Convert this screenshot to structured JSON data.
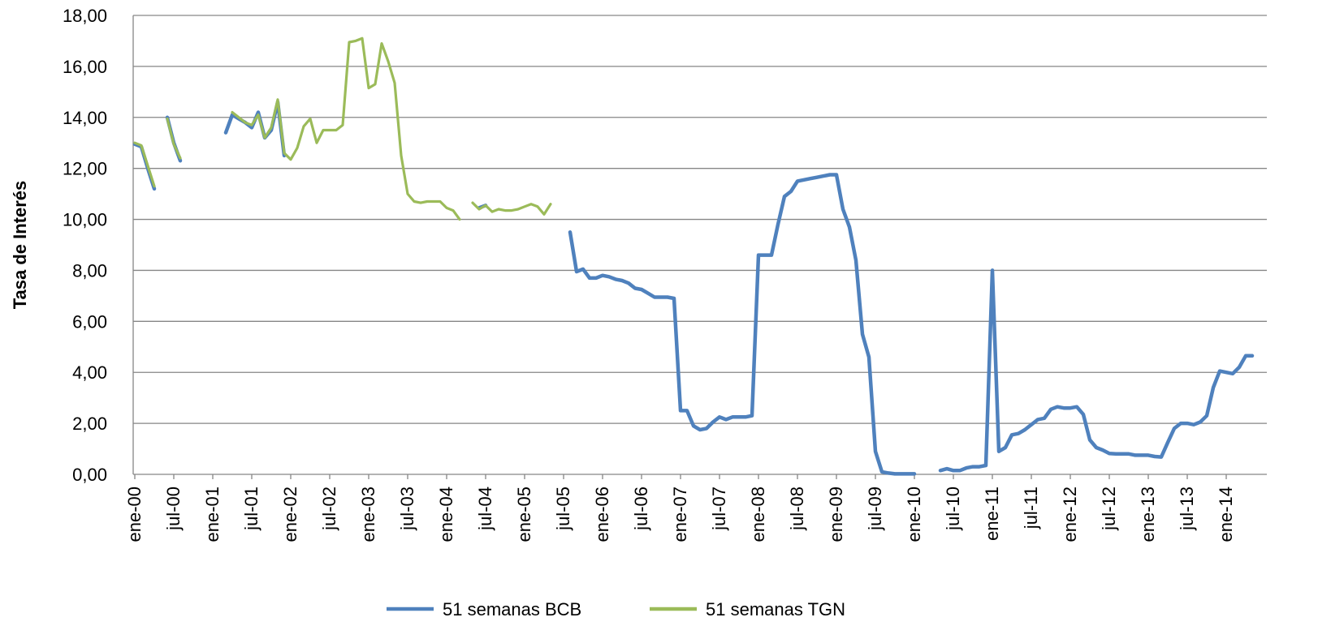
{
  "chart_data": {
    "type": "line",
    "ylabel": "Tasa de Interés",
    "ylim": [
      0,
      18
    ],
    "yticks": [
      "0,00",
      "2,00",
      "4,00",
      "6,00",
      "8,00",
      "10,00",
      "12,00",
      "14,00",
      "16,00",
      "18,00"
    ],
    "xticks": [
      "ene-00",
      "jul-00",
      "ene-01",
      "jul-01",
      "ene-02",
      "jul-02",
      "ene-03",
      "jul-03",
      "ene-04",
      "jul-04",
      "ene-05",
      "jul-05",
      "ene-06",
      "jul-06",
      "ene-07",
      "jul-07",
      "ene-08",
      "jul-08",
      "ene-09",
      "jul-09",
      "ene-10",
      "jul-10",
      "ene-11",
      "jul-11",
      "ene-12",
      "jul-12",
      "ene-13",
      "jul-13",
      "ene-14"
    ],
    "x_unit": "months since ene-00",
    "grid": true,
    "legend_position": "bottom",
    "series": [
      {
        "name": "51 semanas BCB",
        "color": "#4F81BD",
        "segments": [
          [
            [
              0,
              12.95
            ],
            [
              1,
              12.85
            ],
            [
              2,
              12.0
            ],
            [
              3,
              11.2
            ]
          ],
          [
            [
              5,
              14.0
            ],
            [
              6,
              13.0
            ],
            [
              7,
              12.3
            ]
          ],
          [
            [
              14,
              13.4
            ],
            [
              15,
              14.1
            ],
            [
              16,
              13.95
            ],
            [
              17,
              13.8
            ],
            [
              18,
              13.6
            ],
            [
              19,
              14.2
            ],
            [
              20,
              13.2
            ],
            [
              21,
              13.5
            ],
            [
              22,
              14.6
            ],
            [
              23,
              12.5
            ]
          ],
          [
            [
              53,
              10.45
            ],
            [
              54,
              10.55
            ]
          ],
          [
            [
              67,
              9.5
            ],
            [
              68,
              7.95
            ],
            [
              69,
              8.05
            ],
            [
              70,
              7.7
            ],
            [
              71,
              7.7
            ],
            [
              72,
              7.8
            ],
            [
              73,
              7.75
            ],
            [
              74,
              7.65
            ],
            [
              75,
              7.6
            ],
            [
              76,
              7.5
            ],
            [
              77,
              7.3
            ],
            [
              78,
              7.25
            ],
            [
              79,
              7.1
            ],
            [
              80,
              6.95
            ],
            [
              81,
              6.95
            ],
            [
              82,
              6.95
            ],
            [
              83,
              6.9
            ],
            [
              84,
              2.5
            ],
            [
              85,
              2.5
            ],
            [
              86,
              1.9
            ],
            [
              87,
              1.75
            ],
            [
              88,
              1.8
            ],
            [
              89,
              2.05
            ],
            [
              90,
              2.25
            ],
            [
              91,
              2.15
            ],
            [
              92,
              2.25
            ],
            [
              93,
              2.25
            ],
            [
              94,
              2.25
            ],
            [
              95,
              2.3
            ],
            [
              96,
              8.6
            ],
            [
              97,
              8.6
            ],
            [
              98,
              8.6
            ],
            [
              99,
              9.8
            ],
            [
              100,
              10.9
            ],
            [
              101,
              11.1
            ],
            [
              102,
              11.5
            ],
            [
              103,
              11.55
            ],
            [
              104,
              11.6
            ],
            [
              105,
              11.65
            ],
            [
              106,
              11.7
            ],
            [
              107,
              11.75
            ],
            [
              108,
              11.75
            ],
            [
              109,
              10.4
            ],
            [
              110,
              9.7
            ],
            [
              111,
              8.4
            ],
            [
              112,
              5.5
            ],
            [
              113,
              4.6
            ],
            [
              114,
              0.9
            ],
            [
              115,
              0.1
            ],
            [
              116,
              0.05
            ],
            [
              117,
              0.02
            ],
            [
              118,
              0.02
            ],
            [
              119,
              0.02
            ],
            [
              120,
              0.02
            ]
          ],
          [
            [
              124,
              0.15
            ],
            [
              125,
              0.22
            ],
            [
              126,
              0.15
            ],
            [
              127,
              0.15
            ],
            [
              128,
              0.25
            ],
            [
              129,
              0.3
            ],
            [
              130,
              0.3
            ],
            [
              131,
              0.35
            ],
            [
              132,
              8.0
            ],
            [
              133,
              0.9
            ],
            [
              134,
              1.05
            ],
            [
              135,
              1.55
            ],
            [
              136,
              1.6
            ],
            [
              137,
              1.75
            ],
            [
              138,
              1.95
            ],
            [
              139,
              2.15
            ],
            [
              140,
              2.2
            ],
            [
              141,
              2.55
            ],
            [
              142,
              2.65
            ],
            [
              143,
              2.6
            ],
            [
              144,
              2.6
            ],
            [
              145,
              2.65
            ],
            [
              146,
              2.35
            ],
            [
              147,
              1.35
            ],
            [
              148,
              1.05
            ],
            [
              149,
              0.95
            ],
            [
              150,
              0.82
            ],
            [
              151,
              0.8
            ],
            [
              152,
              0.8
            ],
            [
              153,
              0.8
            ],
            [
              154,
              0.75
            ],
            [
              155,
              0.75
            ],
            [
              156,
              0.75
            ],
            [
              157,
              0.7
            ],
            [
              158,
              0.68
            ],
            [
              159,
              1.25
            ],
            [
              160,
              1.8
            ],
            [
              161,
              2.0
            ],
            [
              162,
              2.0
            ],
            [
              163,
              1.95
            ],
            [
              164,
              2.05
            ],
            [
              165,
              2.3
            ],
            [
              166,
              3.4
            ],
            [
              167,
              4.05
            ],
            [
              168,
              4.0
            ],
            [
              169,
              3.95
            ],
            [
              170,
              4.2
            ],
            [
              171,
              4.65
            ],
            [
              172,
              4.65
            ]
          ]
        ]
      },
      {
        "name": "51 semanas TGN",
        "color": "#9BBB59",
        "segments": [
          [
            [
              0,
              13.0
            ],
            [
              1,
              12.9
            ],
            [
              2,
              12.1
            ],
            [
              3,
              11.3
            ]
          ],
          [
            [
              5,
              13.95
            ],
            [
              6,
              12.95
            ],
            [
              7,
              12.4
            ]
          ],
          [
            [
              15,
              14.2
            ],
            [
              16,
              14.0
            ],
            [
              17,
              13.8
            ],
            [
              18,
              13.7
            ],
            [
              19,
              14.1
            ],
            [
              20,
              13.2
            ],
            [
              21,
              13.6
            ],
            [
              22,
              14.7
            ],
            [
              23,
              12.6
            ],
            [
              24,
              12.35
            ],
            [
              25,
              12.8
            ],
            [
              26,
              13.65
            ],
            [
              27,
              13.95
            ],
            [
              28,
              13.0
            ],
            [
              29,
              13.5
            ],
            [
              30,
              13.5
            ],
            [
              31,
              13.5
            ],
            [
              32,
              13.7
            ],
            [
              33,
              16.95
            ],
            [
              34,
              17.0
            ],
            [
              35,
              17.1
            ],
            [
              36,
              15.15
            ],
            [
              37,
              15.3
            ],
            [
              38,
              16.9
            ],
            [
              39,
              16.2
            ],
            [
              40,
              15.35
            ],
            [
              41,
              12.5
            ],
            [
              42,
              11.0
            ],
            [
              43,
              10.7
            ],
            [
              44,
              10.65
            ],
            [
              45,
              10.7
            ],
            [
              46,
              10.7
            ],
            [
              47,
              10.7
            ],
            [
              48,
              10.45
            ],
            [
              49,
              10.35
            ],
            [
              50,
              10.0
            ]
          ],
          [
            [
              52,
              10.65
            ],
            [
              53,
              10.4
            ],
            [
              54,
              10.55
            ],
            [
              55,
              10.3
            ],
            [
              56,
              10.4
            ],
            [
              57,
              10.35
            ],
            [
              58,
              10.35
            ],
            [
              59,
              10.4
            ],
            [
              60,
              10.5
            ],
            [
              61,
              10.6
            ],
            [
              62,
              10.5
            ],
            [
              63,
              10.2
            ],
            [
              64,
              10.6
            ]
          ]
        ]
      }
    ]
  }
}
